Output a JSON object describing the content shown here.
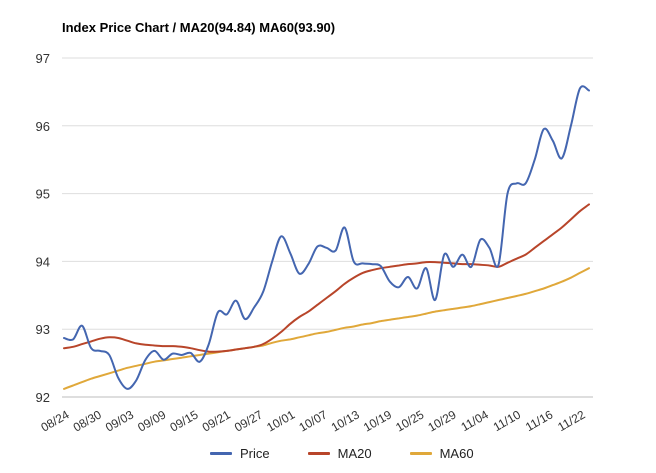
{
  "chart_data": {
    "type": "line",
    "title": "Index Price Chart / MA20(94.84) MA60(93.90)",
    "xlabel": "",
    "ylabel": "",
    "ylim": [
      92,
      97
    ],
    "yticks": [
      "92",
      "93",
      "94",
      "95",
      "96",
      "97"
    ],
    "x_tick_labels": [
      "08/24",
      "08/30",
      "09/03",
      "09/09",
      "09/15",
      "09/21",
      "09/27",
      "10/01",
      "10/07",
      "10/13",
      "10/19",
      "10/25",
      "10/29",
      "11/04",
      "11/10",
      "11/16",
      "11/22"
    ],
    "grid": true,
    "legend_position": "bottom",
    "series": [
      {
        "name": "Price",
        "color": "#4466b0",
        "values": [
          92.87,
          92.85,
          93.05,
          92.72,
          92.68,
          92.62,
          92.28,
          92.12,
          92.25,
          92.55,
          92.68,
          92.55,
          92.64,
          92.62,
          92.65,
          92.52,
          92.78,
          93.25,
          93.22,
          93.42,
          93.15,
          93.32,
          93.55,
          94.0,
          94.37,
          94.12,
          93.82,
          93.96,
          94.22,
          94.2,
          94.16,
          94.5,
          94.0,
          93.97,
          93.96,
          93.93,
          93.7,
          93.62,
          93.77,
          93.6,
          93.9,
          93.43,
          94.1,
          93.92,
          94.1,
          93.92,
          94.32,
          94.2,
          93.95,
          95.0,
          95.15,
          95.15,
          95.5,
          95.95,
          95.78,
          95.52,
          96.0,
          96.55,
          96.52
        ]
      },
      {
        "name": "MA20",
        "color": "#b8452a",
        "values": [
          92.72,
          92.74,
          92.78,
          92.82,
          92.86,
          92.88,
          92.87,
          92.83,
          92.79,
          92.77,
          92.76,
          92.75,
          92.75,
          92.74,
          92.72,
          92.69,
          92.67,
          92.67,
          92.68,
          92.7,
          92.72,
          92.74,
          92.78,
          92.86,
          92.96,
          93.08,
          93.18,
          93.26,
          93.36,
          93.46,
          93.56,
          93.67,
          93.76,
          93.83,
          93.87,
          93.9,
          93.92,
          93.94,
          93.96,
          93.97,
          93.99,
          93.99,
          93.98,
          93.97,
          93.96,
          93.96,
          93.95,
          93.94,
          93.92,
          93.98,
          94.04,
          94.1,
          94.2,
          94.3,
          94.4,
          94.5,
          94.62,
          94.74,
          94.84
        ]
      },
      {
        "name": "MA60",
        "color": "#e0a83a",
        "values": [
          92.12,
          92.17,
          92.22,
          92.27,
          92.31,
          92.35,
          92.39,
          92.43,
          92.46,
          92.49,
          92.52,
          92.54,
          92.56,
          92.58,
          92.6,
          92.62,
          92.64,
          92.66,
          92.68,
          92.7,
          92.72,
          92.74,
          92.76,
          92.8,
          92.83,
          92.85,
          92.88,
          92.91,
          92.94,
          92.96,
          92.99,
          93.02,
          93.04,
          93.07,
          93.09,
          93.12,
          93.14,
          93.16,
          93.18,
          93.2,
          93.23,
          93.26,
          93.28,
          93.3,
          93.32,
          93.34,
          93.37,
          93.4,
          93.43,
          93.46,
          93.49,
          93.52,
          93.56,
          93.6,
          93.65,
          93.7,
          93.76,
          93.83,
          93.9
        ]
      }
    ]
  }
}
